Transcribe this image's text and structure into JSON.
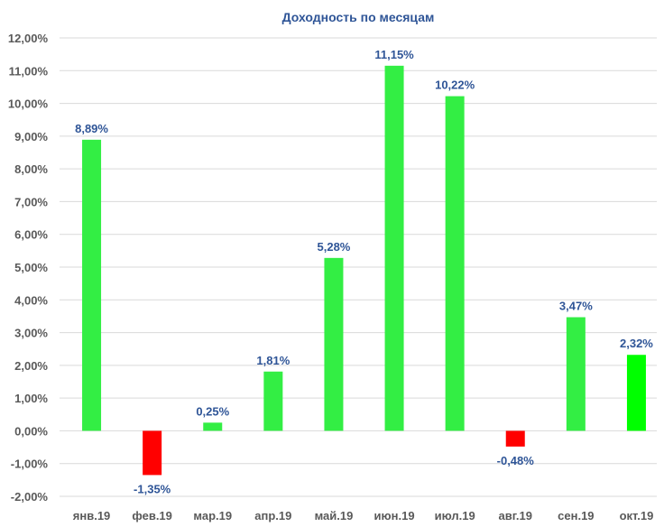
{
  "chart_data": {
    "type": "bar",
    "title": "Доходность по месяцам",
    "xlabel": "",
    "ylabel": "",
    "categories": [
      "янв.19",
      "фев.19",
      "мар.19",
      "апр.19",
      "май.19",
      "июн.19",
      "июл.19",
      "авг.19",
      "сен.19",
      "окт.19"
    ],
    "values": [
      8.89,
      -1.35,
      0.25,
      1.81,
      5.28,
      11.15,
      10.22,
      -0.48,
      3.47,
      2.32
    ],
    "data_labels": [
      "8,89%",
      "-1,35%",
      "0,25%",
      "1,81%",
      "5,28%",
      "11,15%",
      "10,22%",
      "-0,48%",
      "3,47%",
      "2,32%"
    ],
    "ylim": [
      -2,
      12
    ],
    "yticks": [
      12,
      11,
      10,
      9,
      8,
      7,
      6,
      5,
      4,
      3,
      2,
      1,
      0,
      -1,
      -2
    ],
    "ytick_labels": [
      "12,00%",
      "11,00%",
      "10,00%",
      "9,00%",
      "8,00%",
      "7,00%",
      "6,00%",
      "5,00%",
      "4,00%",
      "3,00%",
      "2,00%",
      "1,00%",
      "0,00%",
      "-1,00%",
      "-2,00%"
    ],
    "grid": true,
    "legend": "none",
    "colors": {
      "positive": "#33ee44",
      "negative": "#ff0000",
      "last_bar": "#00ff00",
      "title": "#2f5597",
      "data_label": "#2f5597",
      "grid": "#d9d9d9",
      "axis_text": "#595959"
    }
  }
}
